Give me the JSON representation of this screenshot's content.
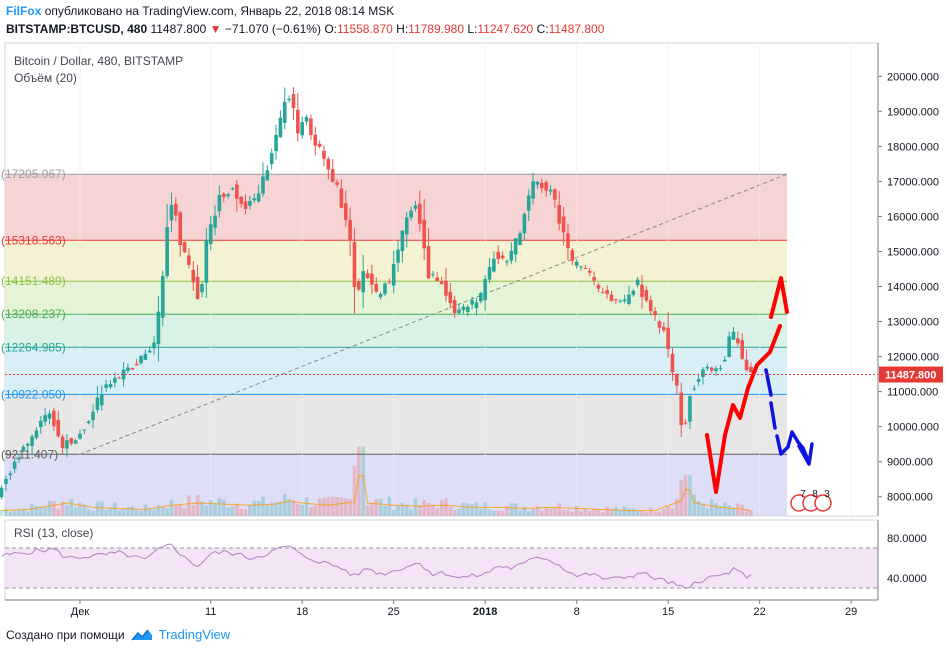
{
  "header": {
    "author": "FilFox",
    "published": "опубликовано на TradingView.com, Январь 22, 2018 08:14 MSK",
    "symbol": "BITSTAMP:BTCUSD, 480",
    "last": "11487.800",
    "change": "−71.070 (−0.61%)",
    "o_label": "O:",
    "o_value": "11558.870",
    "h_label": "H:",
    "h_value": "11789.980",
    "l_label": "L:",
    "l_value": "11247.620",
    "c_label": "C:",
    "c_value": "11487.800"
  },
  "footer": {
    "created": "Создано при помощи",
    "brand": "TradingView"
  },
  "colors": {
    "up": "#26a69a",
    "down": "#ef5350",
    "rsi_line": "#b47fc4",
    "rsi_band": "#f3e5f5",
    "drawing_red": "#ff0000",
    "drawing_blue": "#0d13e0",
    "price_label": "#e53935"
  },
  "chart_data": [
    {
      "type": "candlestick",
      "title": "Bitcoin / Dollar, 480, BITSTAMP",
      "volume_label": "Объём (20)",
      "y_ticks": [
        8000,
        9000,
        10000,
        11000,
        12000,
        13000,
        14000,
        15000,
        16000,
        17000,
        18000,
        19000,
        20000
      ],
      "y_tick_labels": [
        "8000.000",
        "9000.000",
        "10000.000",
        "11000.000",
        "12000.000",
        "13000.000",
        "14000.000",
        "15000.000",
        "16000.000",
        "17000.000",
        "18000.000",
        "19000.000",
        "20000.000"
      ],
      "ylim": [
        7450,
        20950
      ],
      "x_ticks": [
        "Дек",
        "11",
        "18",
        "25",
        "2018",
        "8",
        "15",
        "22",
        "29"
      ],
      "x_tick_days": [
        1,
        11,
        18,
        25,
        32,
        39,
        46,
        53,
        60
      ],
      "last_price": 11487.8,
      "last_price_label": "11487.800",
      "fib_levels": [
        {
          "label": "17205.067",
          "value": 17205.067,
          "color": "#9e9e9e",
          "fill": "#f4cccc"
        },
        {
          "label": "15318.563",
          "value": 15318.563,
          "color": "#e53935",
          "fill": "#f3efcb"
        },
        {
          "label": "14151.489",
          "value": 14151.489,
          "color": "#8bc34a",
          "fill": "#e0f2cf"
        },
        {
          "label": "13208.237",
          "value": 13208.237,
          "color": "#4caf50",
          "fill": "#d4f0e1"
        },
        {
          "label": "12264.985",
          "value": 12264.985,
          "color": "#26a69a",
          "fill": "#d4ecf3"
        },
        {
          "label": "10922.050",
          "value": 10922.05,
          "color": "#2196f3",
          "fill": "#e3e3e3"
        },
        {
          "label": "9211.407",
          "value": 9211.407,
          "color": "#5e5e5e",
          "fill": "#d8d8f5"
        }
      ],
      "price_path": [
        [
          -5,
          8100
        ],
        [
          -3,
          9400
        ],
        [
          -1,
          10400
        ],
        [
          0,
          9500
        ],
        [
          1,
          9700
        ],
        [
          2,
          10200
        ],
        [
          3,
          11000
        ],
        [
          4,
          11400
        ],
        [
          5,
          11600
        ],
        [
          6,
          11900
        ],
        [
          7,
          12400
        ],
        [
          7.5,
          13600
        ],
        [
          8,
          15800
        ],
        [
          8.5,
          16500
        ],
        [
          9,
          15200
        ],
        [
          10,
          14200
        ],
        [
          10.5,
          13500
        ],
        [
          11,
          15200
        ],
        [
          12,
          16600
        ],
        [
          13,
          16800
        ],
        [
          14,
          16200
        ],
        [
          15,
          16700
        ],
        [
          16,
          17800
        ],
        [
          17,
          19200
        ],
        [
          17.5,
          19500
        ],
        [
          18,
          18300
        ],
        [
          18.5,
          19000
        ],
        [
          19,
          18400
        ],
        [
          20,
          17600
        ],
        [
          21,
          16800
        ],
        [
          22,
          15300
        ],
        [
          22.5,
          13500
        ],
        [
          23,
          14500
        ],
        [
          24,
          13800
        ],
        [
          25,
          14100
        ],
        [
          26,
          15600
        ],
        [
          27,
          16400
        ],
        [
          27.5,
          15500
        ],
        [
          28,
          14300
        ],
        [
          29,
          14100
        ],
        [
          30,
          13300
        ],
        [
          31,
          13400
        ],
        [
          32,
          13700
        ],
        [
          33,
          14900
        ],
        [
          34,
          14700
        ],
        [
          35,
          15600
        ],
        [
          36,
          17000
        ],
        [
          37,
          16800
        ],
        [
          37.5,
          16600
        ],
        [
          38,
          15900
        ],
        [
          39,
          14700
        ],
        [
          40,
          14500
        ],
        [
          41,
          13900
        ],
        [
          42,
          13600
        ],
        [
          43,
          13600
        ],
        [
          44,
          14100
        ],
        [
          45,
          13200
        ],
        [
          46,
          12800
        ],
        [
          46.5,
          11800
        ],
        [
          47,
          11100
        ],
        [
          47.5,
          9600
        ],
        [
          48,
          11000
        ],
        [
          49,
          11600
        ],
        [
          50,
          11700
        ],
        [
          50.5,
          11800
        ],
        [
          51,
          12500
        ],
        [
          51.5,
          12700
        ],
        [
          52,
          11900
        ],
        [
          52.5,
          11490
        ]
      ],
      "volume_path": [
        [
          -5,
          0.05
        ],
        [
          -3,
          0.06
        ],
        [
          0,
          0.12
        ],
        [
          2,
          0.08
        ],
        [
          4,
          0.07
        ],
        [
          6,
          0.06
        ],
        [
          8,
          0.1
        ],
        [
          10,
          0.12
        ],
        [
          12,
          0.11
        ],
        [
          14,
          0.1
        ],
        [
          16,
          0.11
        ],
        [
          17,
          0.14
        ],
        [
          18,
          0.12
        ],
        [
          20,
          0.1
        ],
        [
          22,
          0.13
        ],
        [
          22.5,
          0.5
        ],
        [
          23,
          0.12
        ],
        [
          25,
          0.1
        ],
        [
          27,
          0.09
        ],
        [
          29,
          0.1
        ],
        [
          31,
          0.08
        ],
        [
          33,
          0.08
        ],
        [
          35,
          0.07
        ],
        [
          37,
          0.08
        ],
        [
          39,
          0.07
        ],
        [
          41,
          0.06
        ],
        [
          43,
          0.05
        ],
        [
          45,
          0.05
        ],
        [
          47,
          0.14
        ],
        [
          47.5,
          0.3
        ],
        [
          48,
          0.12
        ],
        [
          50,
          0.08
        ],
        [
          52,
          0.06
        ],
        [
          52.5,
          0.04
        ]
      ],
      "volume_spikes": [
        [
          22,
          0.42
        ],
        [
          22.5,
          0.58
        ],
        [
          47,
          0.3
        ],
        [
          47.5,
          0.34
        ]
      ]
    },
    {
      "type": "line",
      "title": "RSI (13, close)",
      "y_ticks": [
        40,
        80
      ],
      "y_tick_labels": [
        "40.0000",
        "80.0000"
      ],
      "ylim": [
        18,
        98
      ],
      "band": [
        30,
        70
      ],
      "rsi_path": [
        [
          -5,
          62
        ],
        [
          -3,
          66
        ],
        [
          -1,
          69
        ],
        [
          0,
          60
        ],
        [
          2,
          62
        ],
        [
          4,
          65
        ],
        [
          6,
          58
        ],
        [
          7,
          68
        ],
        [
          8,
          74
        ],
        [
          9,
          60
        ],
        [
          10,
          52
        ],
        [
          11,
          64
        ],
        [
          12,
          66
        ],
        [
          13,
          64
        ],
        [
          14,
          60
        ],
        [
          15,
          63
        ],
        [
          16,
          68
        ],
        [
          17,
          72
        ],
        [
          18,
          62
        ],
        [
          19,
          58
        ],
        [
          20,
          54
        ],
        [
          21,
          50
        ],
        [
          22,
          42
        ],
        [
          23,
          50
        ],
        [
          24,
          44
        ],
        [
          25,
          47
        ],
        [
          26,
          52
        ],
        [
          27,
          55
        ],
        [
          28,
          44
        ],
        [
          29,
          45
        ],
        [
          30,
          40
        ],
        [
          31,
          42
        ],
        [
          32,
          44
        ],
        [
          33,
          52
        ],
        [
          34,
          50
        ],
        [
          35,
          54
        ],
        [
          36,
          62
        ],
        [
          37,
          58
        ],
        [
          38,
          50
        ],
        [
          39,
          42
        ],
        [
          40,
          44
        ],
        [
          41,
          40
        ],
        [
          42,
          39
        ],
        [
          43,
          42
        ],
        [
          44,
          45
        ],
        [
          45,
          40
        ],
        [
          46,
          36
        ],
        [
          47,
          31
        ],
        [
          47.5,
          26
        ],
        [
          48,
          36
        ],
        [
          49,
          40
        ],
        [
          50,
          42
        ],
        [
          51,
          48
        ],
        [
          52,
          42
        ],
        [
          52.5,
          41
        ]
      ]
    }
  ]
}
